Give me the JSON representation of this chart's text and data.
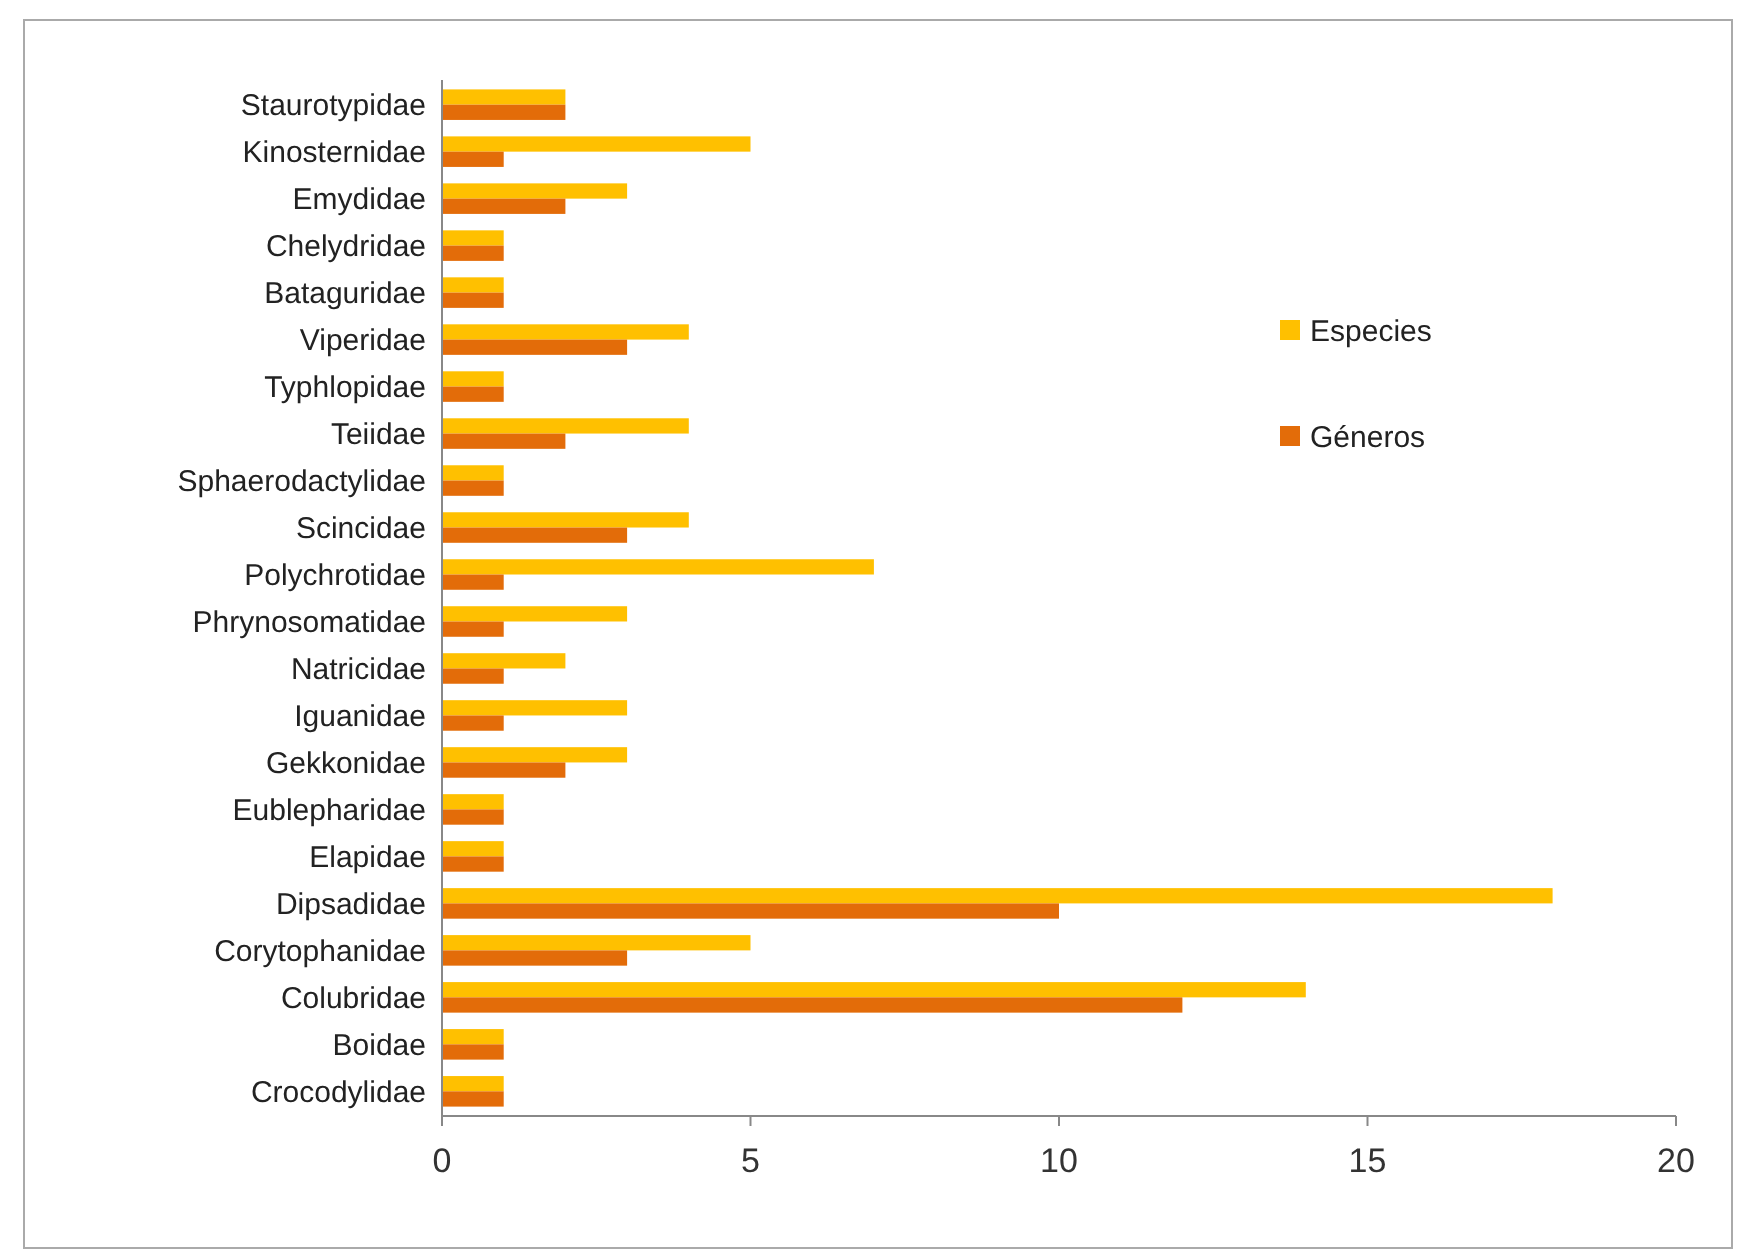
{
  "chart_data": {
    "type": "bar",
    "orientation": "horizontal",
    "categories": [
      "Staurotypidae",
      "Kinosternidae",
      "Emydidae",
      "Chelydridae",
      "Bataguridae",
      "Viperidae",
      "Typhlopidae",
      "Teiidae",
      "Sphaerodactylidae",
      "Scincidae",
      "Polychrotidae",
      "Phrynosomatidae",
      "Natricidae",
      "Iguanidae",
      "Gekkonidae",
      "Eublepharidae",
      "Elapidae",
      "Dipsadidae",
      "Corytophanidae",
      "Colubridae",
      "Boidae",
      "Crocodylidae"
    ],
    "series": [
      {
        "name": "Especies",
        "color": "#ffc000",
        "values": [
          2,
          5,
          3,
          1,
          1,
          4,
          1,
          4,
          1,
          4,
          7,
          3,
          2,
          3,
          3,
          1,
          1,
          18,
          5,
          14,
          1,
          1
        ]
      },
      {
        "name": "Géneros",
        "color": "#e36c09",
        "values": [
          2,
          1,
          2,
          1,
          1,
          3,
          1,
          2,
          1,
          3,
          1,
          1,
          1,
          1,
          2,
          1,
          1,
          10,
          3,
          12,
          1,
          1
        ]
      }
    ],
    "xlim": [
      0,
      20
    ],
    "xticks": [
      0,
      5,
      10,
      15,
      20
    ],
    "grid": false,
    "legend": "right"
  }
}
